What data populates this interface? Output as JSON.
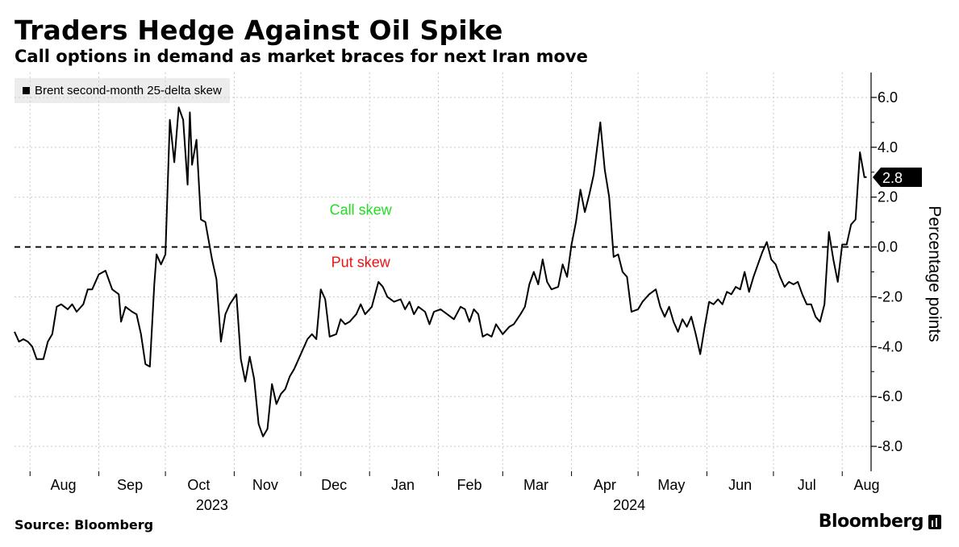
{
  "title": "Traders Hedge Against Oil Spike",
  "subtitle": "Call options in demand as market braces for next Iran move",
  "source": "Source: Bloomberg",
  "brand": "Bloomberg",
  "chart_data": {
    "type": "line",
    "title": "Traders Hedge Against Oil Spike",
    "ylabel": "Percentage points",
    "xlabel": "",
    "ylim": [
      -9,
      7
    ],
    "yticks": [
      6,
      4,
      2,
      0,
      -2,
      -4,
      -6,
      -8
    ],
    "ytick_labels": [
      "6.0",
      "4.0",
      "2.0",
      "0.0",
      "-2.0",
      "-4.0",
      "-6.0",
      "-8.0"
    ],
    "x_start": "2023-07-25",
    "x_end": "2024-08-14",
    "month_labels": [
      {
        "label": "Aug",
        "date": "2023-08-16"
      },
      {
        "label": "Sep",
        "date": "2023-09-15"
      },
      {
        "label": "Oct",
        "date": "2023-10-16"
      },
      {
        "label": "Nov",
        "date": "2023-11-15"
      },
      {
        "label": "Dec",
        "date": "2023-12-16"
      },
      {
        "label": "Jan",
        "date": "2024-01-16"
      },
      {
        "label": "Feb",
        "date": "2024-02-15"
      },
      {
        "label": "Mar",
        "date": "2024-03-16"
      },
      {
        "label": "Apr",
        "date": "2024-04-16"
      },
      {
        "label": "May",
        "date": "2024-05-16"
      },
      {
        "label": "Jun",
        "date": "2024-06-16"
      },
      {
        "label": "Jul",
        "date": "2024-07-16"
      },
      {
        "label": "Aug",
        "date": "2024-08-12"
      }
    ],
    "year_labels": [
      {
        "label": "2023",
        "date": "2023-10-22"
      },
      {
        "label": "2024",
        "date": "2024-04-27"
      }
    ],
    "grid_dates": [
      "2023-08-01",
      "2023-09-01",
      "2023-10-01",
      "2023-11-01",
      "2023-12-01",
      "2024-01-01",
      "2024-02-01",
      "2024-03-01",
      "2024-04-01",
      "2024-05-01",
      "2024-06-01",
      "2024-07-01",
      "2024-08-01"
    ],
    "reference_line": {
      "y": 0,
      "style": "dashed"
    },
    "annotations": [
      {
        "text": "Call skew",
        "color": "#22dd22",
        "x": "2023-12-28",
        "y": 1.3
      },
      {
        "text": "Put skew",
        "color": "#ee1111",
        "x": "2023-12-28",
        "y": -0.8
      }
    ],
    "last_value_label": "2.8",
    "series": [
      {
        "name": "Brent second-month 25-delta skew",
        "color": "#000000",
        "points": [
          [
            "2023-07-25",
            -3.4
          ],
          [
            "2023-07-27",
            -3.8
          ],
          [
            "2023-07-29",
            -3.7
          ],
          [
            "2023-07-31",
            -3.8
          ],
          [
            "2023-08-02",
            -4.0
          ],
          [
            "2023-08-04",
            -4.5
          ],
          [
            "2023-08-07",
            -4.5
          ],
          [
            "2023-08-09",
            -3.8
          ],
          [
            "2023-08-11",
            -3.5
          ],
          [
            "2023-08-13",
            -2.4
          ],
          [
            "2023-08-15",
            -2.3
          ],
          [
            "2023-08-18",
            -2.5
          ],
          [
            "2023-08-20",
            -2.3
          ],
          [
            "2023-08-22",
            -2.6
          ],
          [
            "2023-08-25",
            -2.3
          ],
          [
            "2023-08-27",
            -1.7
          ],
          [
            "2023-08-29",
            -1.7
          ],
          [
            "2023-09-01",
            -1.1
          ],
          [
            "2023-09-04",
            -0.95
          ],
          [
            "2023-09-07",
            -1.7
          ],
          [
            "2023-09-10",
            -1.9
          ],
          [
            "2023-09-11",
            -3.0
          ],
          [
            "2023-09-13",
            -2.4
          ],
          [
            "2023-09-16",
            -2.6
          ],
          [
            "2023-09-18",
            -2.7
          ],
          [
            "2023-09-20",
            -3.5
          ],
          [
            "2023-09-22",
            -4.7
          ],
          [
            "2023-09-24",
            -4.8
          ],
          [
            "2023-09-26",
            -1.5
          ],
          [
            "2023-09-27",
            -0.3
          ],
          [
            "2023-09-29",
            -0.7
          ],
          [
            "2023-10-01",
            -0.3
          ],
          [
            "2023-10-03",
            5.1
          ],
          [
            "2023-10-05",
            3.4
          ],
          [
            "2023-10-07",
            5.6
          ],
          [
            "2023-10-09",
            5.1
          ],
          [
            "2023-10-11",
            2.5
          ],
          [
            "2023-10-12",
            5.4
          ],
          [
            "2023-10-13",
            3.3
          ],
          [
            "2023-10-15",
            4.3
          ],
          [
            "2023-10-17",
            1.1
          ],
          [
            "2023-10-19",
            1.0
          ],
          [
            "2023-10-22",
            -0.5
          ],
          [
            "2023-10-24",
            -1.3
          ],
          [
            "2023-10-26",
            -3.8
          ],
          [
            "2023-10-28",
            -2.7
          ],
          [
            "2023-10-30",
            -2.3
          ],
          [
            "2023-11-02",
            -1.9
          ],
          [
            "2023-11-04",
            -4.5
          ],
          [
            "2023-11-06",
            -5.4
          ],
          [
            "2023-11-08",
            -4.4
          ],
          [
            "2023-11-10",
            -5.3
          ],
          [
            "2023-11-12",
            -7.1
          ],
          [
            "2023-11-14",
            -7.6
          ],
          [
            "2023-11-16",
            -7.3
          ],
          [
            "2023-11-18",
            -5.5
          ],
          [
            "2023-11-20",
            -6.3
          ],
          [
            "2023-11-22",
            -5.9
          ],
          [
            "2023-11-24",
            -5.7
          ],
          [
            "2023-11-26",
            -5.2
          ],
          [
            "2023-11-28",
            -4.9
          ],
          [
            "2023-11-30",
            -4.5
          ],
          [
            "2023-12-02",
            -4.1
          ],
          [
            "2023-12-04",
            -3.7
          ],
          [
            "2023-12-06",
            -3.5
          ],
          [
            "2023-12-08",
            -3.7
          ],
          [
            "2023-12-10",
            -1.7
          ],
          [
            "2023-12-12",
            -2.1
          ],
          [
            "2023-12-14",
            -3.6
          ],
          [
            "2023-12-17",
            -3.5
          ],
          [
            "2023-12-19",
            -2.9
          ],
          [
            "2023-12-21",
            -3.1
          ],
          [
            "2023-12-23",
            -3.0
          ],
          [
            "2023-12-26",
            -2.7
          ],
          [
            "2023-12-28",
            -2.3
          ],
          [
            "2023-12-30",
            -2.7
          ],
          [
            "2024-01-02",
            -2.4
          ],
          [
            "2024-01-05",
            -1.4
          ],
          [
            "2024-01-07",
            -1.6
          ],
          [
            "2024-01-09",
            -2.0
          ],
          [
            "2024-01-12",
            -2.2
          ],
          [
            "2024-01-15",
            -2.1
          ],
          [
            "2024-01-17",
            -2.5
          ],
          [
            "2024-01-19",
            -2.2
          ],
          [
            "2024-01-21",
            -2.7
          ],
          [
            "2024-01-23",
            -2.4
          ],
          [
            "2024-01-26",
            -2.6
          ],
          [
            "2024-01-28",
            -3.1
          ],
          [
            "2024-01-30",
            -2.6
          ],
          [
            "2024-02-02",
            -2.5
          ],
          [
            "2024-02-05",
            -2.7
          ],
          [
            "2024-02-08",
            -2.9
          ],
          [
            "2024-02-11",
            -2.4
          ],
          [
            "2024-02-13",
            -2.5
          ],
          [
            "2024-02-15",
            -3.0
          ],
          [
            "2024-02-17",
            -2.5
          ],
          [
            "2024-02-19",
            -2.7
          ],
          [
            "2024-02-21",
            -3.6
          ],
          [
            "2024-02-23",
            -3.5
          ],
          [
            "2024-02-25",
            -3.6
          ],
          [
            "2024-02-27",
            -3.1
          ],
          [
            "2024-03-01",
            -3.5
          ],
          [
            "2024-03-04",
            -3.2
          ],
          [
            "2024-03-06",
            -3.1
          ],
          [
            "2024-03-09",
            -2.7
          ],
          [
            "2024-03-11",
            -2.4
          ],
          [
            "2024-03-13",
            -1.5
          ],
          [
            "2024-03-15",
            -1.0
          ],
          [
            "2024-03-17",
            -1.5
          ],
          [
            "2024-03-19",
            -0.5
          ],
          [
            "2024-03-21",
            -1.4
          ],
          [
            "2024-03-23",
            -1.7
          ],
          [
            "2024-03-26",
            -1.6
          ],
          [
            "2024-03-28",
            -0.7
          ],
          [
            "2024-03-30",
            -1.2
          ],
          [
            "2024-04-01",
            0.1
          ],
          [
            "2024-04-03",
            1.0
          ],
          [
            "2024-04-05",
            2.3
          ],
          [
            "2024-04-07",
            1.4
          ],
          [
            "2024-04-09",
            2.1
          ],
          [
            "2024-04-11",
            2.9
          ],
          [
            "2024-04-13",
            4.3
          ],
          [
            "2024-04-14",
            5.0
          ],
          [
            "2024-04-16",
            3.1
          ],
          [
            "2024-04-18",
            2.0
          ],
          [
            "2024-04-20",
            -0.4
          ],
          [
            "2024-04-22",
            -0.3
          ],
          [
            "2024-04-24",
            -1.0
          ],
          [
            "2024-04-26",
            -1.2
          ],
          [
            "2024-04-28",
            -2.6
          ],
          [
            "2024-05-01",
            -2.5
          ],
          [
            "2024-05-03",
            -2.2
          ],
          [
            "2024-05-06",
            -1.9
          ],
          [
            "2024-05-09",
            -1.7
          ],
          [
            "2024-05-11",
            -2.4
          ],
          [
            "2024-05-13",
            -2.8
          ],
          [
            "2024-05-15",
            -2.4
          ],
          [
            "2024-05-17",
            -3.0
          ],
          [
            "2024-05-19",
            -3.4
          ],
          [
            "2024-05-21",
            -2.9
          ],
          [
            "2024-05-23",
            -3.2
          ],
          [
            "2024-05-25",
            -2.8
          ],
          [
            "2024-05-27",
            -3.5
          ],
          [
            "2024-05-29",
            -4.3
          ],
          [
            "2024-05-31",
            -3.2
          ],
          [
            "2024-06-02",
            -2.2
          ],
          [
            "2024-06-04",
            -2.3
          ],
          [
            "2024-06-06",
            -2.1
          ],
          [
            "2024-06-08",
            -2.3
          ],
          [
            "2024-06-10",
            -1.8
          ],
          [
            "2024-06-12",
            -1.9
          ],
          [
            "2024-06-14",
            -1.6
          ],
          [
            "2024-06-16",
            -1.7
          ],
          [
            "2024-06-18",
            -1.0
          ],
          [
            "2024-06-20",
            -1.8
          ],
          [
            "2024-06-22",
            -1.2
          ],
          [
            "2024-06-24",
            -0.7
          ],
          [
            "2024-06-26",
            -0.2
          ],
          [
            "2024-06-28",
            0.2
          ],
          [
            "2024-06-30",
            -0.5
          ],
          [
            "2024-07-02",
            -0.7
          ],
          [
            "2024-07-04",
            -1.2
          ],
          [
            "2024-07-06",
            -1.6
          ],
          [
            "2024-07-08",
            -1.4
          ],
          [
            "2024-07-10",
            -1.5
          ],
          [
            "2024-07-12",
            -1.4
          ],
          [
            "2024-07-14",
            -1.9
          ],
          [
            "2024-07-16",
            -2.3
          ],
          [
            "2024-07-18",
            -2.3
          ],
          [
            "2024-07-20",
            -2.8
          ],
          [
            "2024-07-22",
            -3.0
          ],
          [
            "2024-07-24",
            -2.3
          ],
          [
            "2024-07-26",
            0.6
          ],
          [
            "2024-07-28",
            -0.5
          ],
          [
            "2024-07-30",
            -1.4
          ],
          [
            "2024-08-01",
            0.1
          ],
          [
            "2024-08-03",
            0.1
          ],
          [
            "2024-08-05",
            0.9
          ],
          [
            "2024-08-07",
            1.1
          ],
          [
            "2024-08-09",
            3.8
          ],
          [
            "2024-08-11",
            2.8
          ],
          [
            "2024-08-12",
            2.8
          ]
        ]
      }
    ]
  }
}
